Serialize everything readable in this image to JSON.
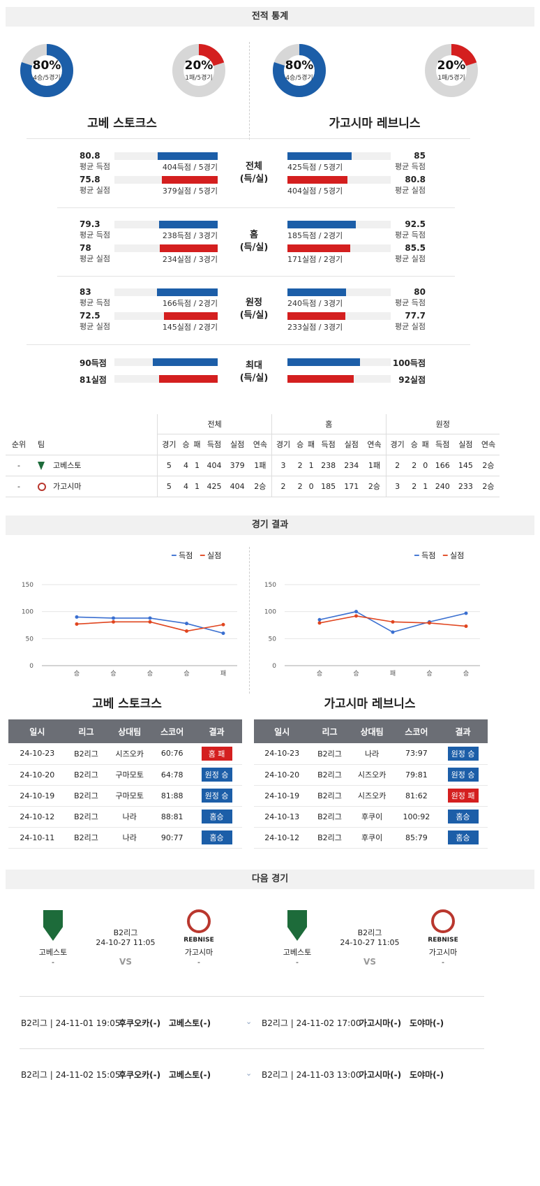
{
  "sections": {
    "stats": "전적 통계",
    "results": "경기 결과",
    "next": "다음 경기"
  },
  "donuts": [
    {
      "pct": "80%",
      "sub": "4승/5경기",
      "value": 0.8,
      "color": "#1c5ea8"
    },
    {
      "pct": "20%",
      "sub": "1패/5경기",
      "value": 0.2,
      "color": "#d41f1f"
    },
    {
      "pct": "80%",
      "sub": "4승/5경기",
      "value": 0.8,
      "color": "#1c5ea8"
    },
    {
      "pct": "20%",
      "sub": "1패/5경기",
      "value": 0.2,
      "color": "#d41f1f"
    }
  ],
  "teams": {
    "home": "고베 스토크스",
    "away": "가고시마 레브니스"
  },
  "stat_groups": [
    {
      "center": [
        "전체",
        "(득/실)"
      ],
      "rows": [
        {
          "lval": "80.8",
          "llbl": "평균 득점",
          "lnote": "404득점 / 5경기",
          "lfrac": 0.58,
          "rval": "85",
          "rlbl": "평균 득점",
          "rnote": "425득점 / 5경기",
          "rfrac": 0.62,
          "color": "blue"
        },
        {
          "lval": "75.8",
          "llbl": "평균 실점",
          "lnote": "379실점 / 5경기",
          "lfrac": 0.54,
          "rval": "80.8",
          "rlbl": "평균 실점",
          "rnote": "404실점 / 5경기",
          "rfrac": 0.58,
          "color": "red"
        }
      ]
    },
    {
      "center": [
        "홈",
        "(득/실)"
      ],
      "rows": [
        {
          "lval": "79.3",
          "llbl": "평균 득점",
          "lnote": "238득점 / 3경기",
          "lfrac": 0.57,
          "rval": "92.5",
          "rlbl": "평균 득점",
          "rnote": "185득점 / 2경기",
          "rfrac": 0.66,
          "color": "blue"
        },
        {
          "lval": "78",
          "llbl": "평균 실점",
          "lnote": "234실점 / 3경기",
          "lfrac": 0.56,
          "rval": "85.5",
          "rlbl": "평균 실점",
          "rnote": "171실점 / 2경기",
          "rfrac": 0.61,
          "color": "red"
        }
      ]
    },
    {
      "center": [
        "원정",
        "(득/실)"
      ],
      "rows": [
        {
          "lval": "83",
          "llbl": "평균 득점",
          "lnote": "166득점 / 2경기",
          "lfrac": 0.59,
          "rval": "80",
          "rlbl": "평균 득점",
          "rnote": "240득점 / 3경기",
          "rfrac": 0.57,
          "color": "blue"
        },
        {
          "lval": "72.5",
          "llbl": "평균 실점",
          "lnote": "145실점 / 2경기",
          "lfrac": 0.52,
          "rval": "77.7",
          "rlbl": "평균 실점",
          "rnote": "233실점 / 3경기",
          "rfrac": 0.56,
          "color": "red"
        }
      ]
    }
  ],
  "max_group": {
    "center": [
      "최대",
      "(득/실)"
    ],
    "rows": [
      {
        "lval": "90득점",
        "lfrac": 0.63,
        "rval": "100득점",
        "rfrac": 0.7,
        "color": "blue"
      },
      {
        "lval": "81실점",
        "lfrac": 0.57,
        "rval": "92실점",
        "rfrac": 0.64,
        "color": "red"
      }
    ]
  },
  "standings": {
    "groups": [
      "전체",
      "홈",
      "원정"
    ],
    "headers": [
      "순위",
      "팀",
      "경기",
      "승",
      "패",
      "득점",
      "실점",
      "연속",
      "경기",
      "승",
      "패",
      "득점",
      "실점",
      "연속",
      "경기",
      "승",
      "패",
      "득점",
      "실점",
      "연속"
    ],
    "rows": [
      {
        "rank": "-",
        "team": "고베스토",
        "cells": [
          "5",
          "4",
          "1",
          "404",
          "379",
          "1패",
          "3",
          "2",
          "1",
          "238",
          "234",
          "1패",
          "2",
          "2",
          "0",
          "166",
          "145",
          "2승"
        ]
      },
      {
        "rank": "-",
        "team": "가고시마",
        "cells": [
          "5",
          "4",
          "1",
          "425",
          "404",
          "2승",
          "2",
          "2",
          "0",
          "185",
          "171",
          "2승",
          "3",
          "2",
          "1",
          "240",
          "233",
          "2승"
        ]
      }
    ]
  },
  "legend": {
    "scored": "득점",
    "conceded": "실점"
  },
  "chart_data": [
    {
      "type": "line",
      "title": "고베 스토크스",
      "categories": [
        "승",
        "승",
        "승",
        "승",
        "패"
      ],
      "ylim": [
        0,
        150
      ],
      "yticks": [
        0,
        50,
        100,
        150
      ],
      "series": [
        {
          "name": "득점",
          "color": "#3a6fd0",
          "values": [
            90,
            88,
            88,
            78,
            60
          ]
        },
        {
          "name": "실점",
          "color": "#e0451f",
          "values": [
            77,
            81,
            81,
            64,
            76
          ]
        }
      ]
    },
    {
      "type": "line",
      "title": "가고시마 레브니스",
      "categories": [
        "승",
        "승",
        "패",
        "승",
        "승"
      ],
      "ylim": [
        0,
        150
      ],
      "yticks": [
        0,
        50,
        100,
        150
      ],
      "series": [
        {
          "name": "득점",
          "color": "#3a6fd0",
          "values": [
            85,
            100,
            62,
            81,
            97
          ]
        },
        {
          "name": "실점",
          "color": "#e0451f",
          "values": [
            79,
            92,
            81,
            79,
            73
          ]
        }
      ]
    }
  ],
  "results_headers": [
    "일시",
    "리그",
    "상대팀",
    "스코어",
    "결과"
  ],
  "results": [
    [
      {
        "date": "24-10-23",
        "league": "B2리그",
        "opp": "시즈오카",
        "score": "60:76",
        "res": "홈 패",
        "color": "#d41f1f"
      },
      {
        "date": "24-10-20",
        "league": "B2리그",
        "opp": "구마모토",
        "score": "64:78",
        "res": "원정 승",
        "color": "#1c5ea8"
      },
      {
        "date": "24-10-19",
        "league": "B2리그",
        "opp": "구마모토",
        "score": "81:88",
        "res": "원정 승",
        "color": "#1c5ea8"
      },
      {
        "date": "24-10-12",
        "league": "B2리그",
        "opp": "나라",
        "score": "88:81",
        "res": "홈승",
        "color": "#1c5ea8"
      },
      {
        "date": "24-10-11",
        "league": "B2리그",
        "opp": "나라",
        "score": "90:77",
        "res": "홈승",
        "color": "#1c5ea8"
      }
    ],
    [
      {
        "date": "24-10-23",
        "league": "B2리그",
        "opp": "나라",
        "score": "73:97",
        "res": "원정 승",
        "color": "#1c5ea8"
      },
      {
        "date": "24-10-20",
        "league": "B2리그",
        "opp": "시즈오카",
        "score": "79:81",
        "res": "원정 승",
        "color": "#1c5ea8"
      },
      {
        "date": "24-10-19",
        "league": "B2리그",
        "opp": "시즈오카",
        "score": "81:62",
        "res": "원정 패",
        "color": "#d41f1f"
      },
      {
        "date": "24-10-13",
        "league": "B2리그",
        "opp": "후쿠이",
        "score": "100:92",
        "res": "홈승",
        "color": "#1c5ea8"
      },
      {
        "date": "24-10-12",
        "league": "B2리그",
        "opp": "후쿠이",
        "score": "85:79",
        "res": "홈승",
        "color": "#1c5ea8"
      }
    ]
  ],
  "next_games": [
    {
      "home": "고베스토",
      "home_rec": "-",
      "league": "B2리그",
      "datetime": "24-10-27 11:05",
      "vs": "VS",
      "away": "가고시마",
      "away_rec": "-",
      "away_logo_text": "REBNISE"
    },
    {
      "home": "고베스토",
      "home_rec": "-",
      "league": "B2리그",
      "datetime": "24-10-27 11:05",
      "vs": "VS",
      "away": "가고시마",
      "away_rec": "-",
      "away_logo_text": "REBNISE"
    }
  ],
  "upcoming": [
    [
      {
        "info": "B2리그 | 24-11-01 19:05",
        "home": "후쿠오카(-)",
        "away": "고베스토(-)"
      },
      {
        "info": "B2리그 | 24-11-02 17:00",
        "home": "가고시마(-)",
        "away": "도야마(-)"
      }
    ],
    [
      {
        "info": "B2리그 | 24-11-02 15:05",
        "home": "후쿠오카(-)",
        "away": "고베스토(-)"
      },
      {
        "info": "B2리그 | 24-11-03 13:00",
        "home": "가고시마(-)",
        "away": "도야마(-)"
      }
    ]
  ]
}
